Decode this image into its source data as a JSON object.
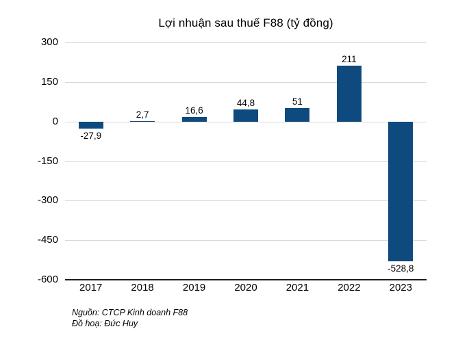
{
  "chart_data": {
    "type": "bar",
    "title": "Lợi nhuận sau thuế F88 (tỷ đồng)",
    "categories": [
      "2017",
      "2018",
      "2019",
      "2020",
      "2021",
      "2022",
      "2023"
    ],
    "values": [
      -27.9,
      2.7,
      16.6,
      44.8,
      51,
      211,
      -528.8
    ],
    "value_labels": [
      "-27,9",
      "2,7",
      "16,6",
      "44,8",
      "51",
      "211",
      "-528,8"
    ],
    "xlabel": "",
    "ylabel": "",
    "ylim": [
      -600,
      300
    ],
    "yticks": [
      300,
      150,
      0,
      -150,
      -300,
      -450,
      -600
    ],
    "ytick_labels": [
      "300",
      "150",
      "0",
      "-150",
      "-300",
      "-450",
      "-600"
    ],
    "grid": true,
    "legend": false,
    "bar_color": "#0e4a7d",
    "gridline_color": "#d8d8d8",
    "axis_line_color": "#1c1c1c",
    "background_color": "#ffffff"
  },
  "footer": {
    "source_line": "Nguồn: CTCP Kinh doanh F88",
    "credit_line": "Đồ hoạ: Đức Huy"
  }
}
